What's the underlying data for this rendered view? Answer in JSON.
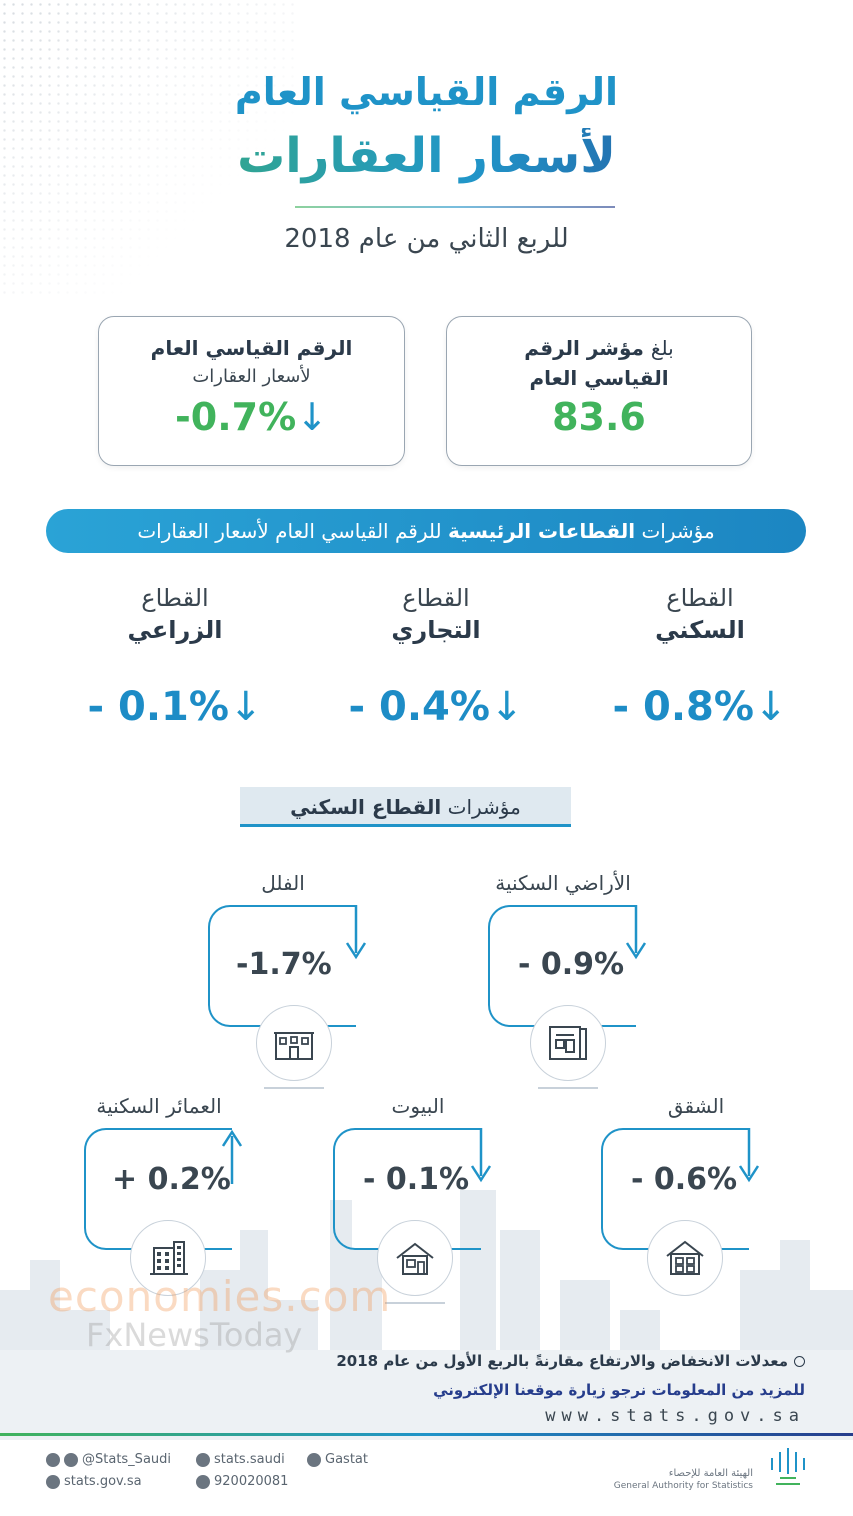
{
  "header": {
    "title_line1": "الرقم القياسي العام",
    "title_line2": "لأسعار العقارات",
    "subtitle": "للربع الثاني من عام 2018"
  },
  "summary_cards": {
    "index": {
      "line1_prefix": "بلغ",
      "line1_bold": "مؤشر الرقم",
      "line2": "القياسي العام",
      "value": "83.6"
    },
    "change": {
      "line1": "الرقم القياسي العام",
      "line2": "لأسعار العقارات",
      "value": "-0.7%",
      "direction": "down"
    }
  },
  "sectors_bar": {
    "prefix": "مؤشرات",
    "bold": "القطاعات الرئيسية",
    "suffix": "للرقم القياسي العام لأسعار العقارات"
  },
  "sectors": [
    {
      "line1": "القطاع",
      "line2": "السكني",
      "value": "- 0.8%",
      "direction": "down"
    },
    {
      "line1": "القطاع",
      "line2": "التجاري",
      "value": "- 0.4%",
      "direction": "down"
    },
    {
      "line1": "القطاع",
      "line2": "الزراعي",
      "value": "- 0.1%",
      "direction": "down"
    }
  ],
  "residential_box": {
    "prefix": "مؤشرات",
    "bold": "القطاع السكني"
  },
  "residential": [
    {
      "label": "الأراضي السكنية",
      "value": "- 0.9%",
      "direction": "down",
      "icon": "blueprint-icon"
    },
    {
      "label": "الفلل",
      "value": "-1.7%",
      "direction": "down",
      "icon": "villa-icon"
    },
    {
      "label": "الشقق",
      "value": "- 0.6%",
      "direction": "down",
      "icon": "apartment-icon"
    },
    {
      "label": "البيوت",
      "value": "- 0.1%",
      "direction": "down",
      "icon": "house-icon"
    },
    {
      "label": "العمائر السكنية",
      "value": "+ 0.2%",
      "direction": "up",
      "icon": "building-icon"
    }
  ],
  "watermark": {
    "line1": "economies.com",
    "line2": "FxNewsToday"
  },
  "notes": {
    "note1": "معدلات الانخفاض والارتفاع مقارنةً بالربع الأول من عام 2018",
    "note2": "للمزيد من المعلومات نرجو زيارة موقعنا الإلكتروني",
    "url": "www.stats.gov.sa"
  },
  "footer": {
    "twitter": "@Stats_Saudi",
    "facebook": "stats.saudi",
    "linkedin": "Gastat",
    "website": "stats.gov.sa",
    "phone": "920020081",
    "org_ar": "الهيئة العامة للإحصاء",
    "org_en": "General Authority for Statistics"
  },
  "colors": {
    "blue": "#1f93c8",
    "green": "#41b35c",
    "navy": "#263d8c"
  }
}
